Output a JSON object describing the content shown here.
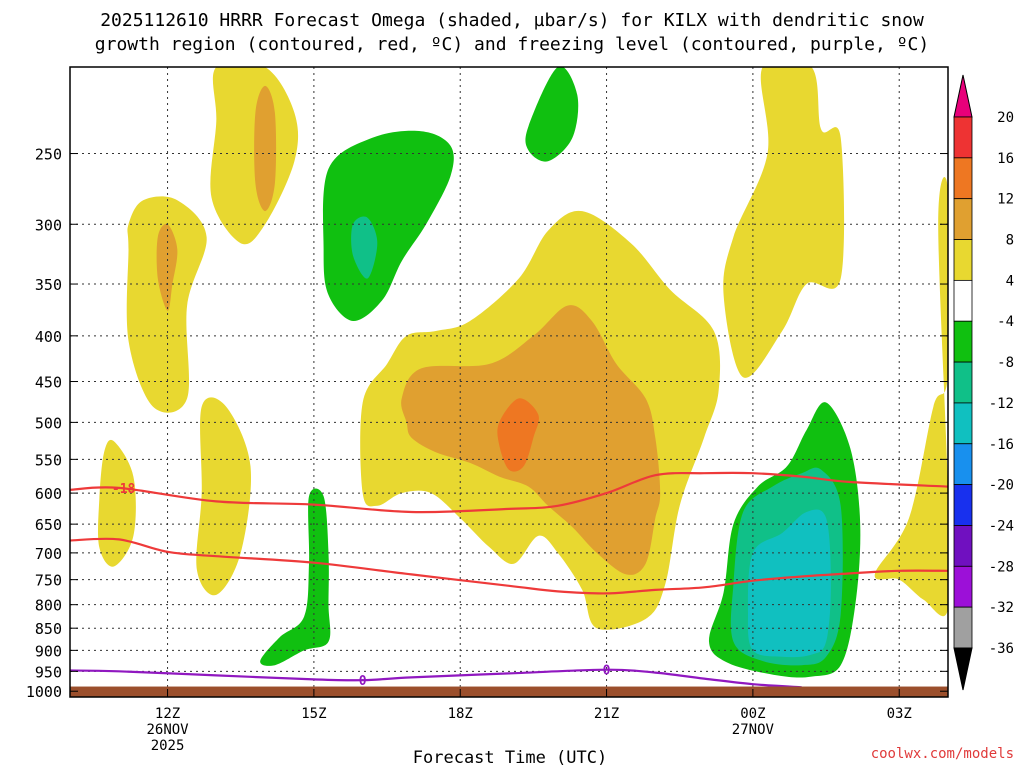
{
  "chart_data": {
    "type": "contour",
    "title_line1": "2025112610 HRRR Forecast Omega (shaded, µbar/s) for KILX with dendritic snow",
    "title_line2": "growth region (contoured, red, ºC) and freezing level (contoured, purple, ºC)",
    "xlabel": "Forecast Time (UTC)",
    "x_ticks": [
      {
        "hour": 12,
        "label": "12Z",
        "sub1": "26NOV",
        "sub2": "2025"
      },
      {
        "hour": 15,
        "label": "15Z",
        "sub1": "",
        "sub2": ""
      },
      {
        "hour": 18,
        "label": "18Z",
        "sub1": "",
        "sub2": ""
      },
      {
        "hour": 21,
        "label": "21Z",
        "sub1": "",
        "sub2": ""
      },
      {
        "hour": 24,
        "label": "00Z",
        "sub1": "27NOV",
        "sub2": ""
      },
      {
        "hour": 27,
        "label": "03Z",
        "sub1": "",
        "sub2": ""
      }
    ],
    "x_range_hours": [
      10,
      28
    ],
    "y_ticks": [
      250,
      300,
      350,
      400,
      450,
      500,
      550,
      600,
      650,
      700,
      750,
      800,
      850,
      900,
      950,
      1000
    ],
    "y_range_hpa": [
      200,
      1015
    ],
    "surface_hpa": 988,
    "colorbar": {
      "labels": [
        "20",
        "16",
        "12",
        "8",
        "4",
        "-4",
        "-8",
        "-12",
        "-16",
        "-20",
        "-24",
        "-28",
        "-32",
        "-36"
      ],
      "colors": [
        "#e8007a",
        "#ee3333",
        "#ee7722",
        "#e0a030",
        "#e8d830",
        "#ffffff",
        "#10c010",
        "#10c088",
        "#10c0c0",
        "#1890ee",
        "#1830ee",
        "#7010c0",
        "#9c10d8",
        "#a0a0a0",
        "#000000"
      ]
    },
    "contours": [
      {
        "name": "dgz-top",
        "value": -18,
        "label": "-18",
        "color": "#ee3a3a",
        "points": [
          [
            10,
            595
          ],
          [
            11,
            592
          ],
          [
            13,
            613
          ],
          [
            15,
            618
          ],
          [
            17,
            630
          ],
          [
            19,
            625
          ],
          [
            20,
            620
          ],
          [
            21,
            600
          ],
          [
            22,
            573
          ],
          [
            23,
            570
          ],
          [
            24,
            570
          ],
          [
            25,
            575
          ],
          [
            26,
            583
          ],
          [
            28,
            590
          ]
        ]
      },
      {
        "name": "dgz-bottom",
        "value": -12,
        "label": "",
        "color": "#ee3a3a",
        "points": [
          [
            10,
            678
          ],
          [
            11,
            676
          ],
          [
            12,
            698
          ],
          [
            13,
            706
          ],
          [
            15,
            718
          ],
          [
            17,
            740
          ],
          [
            19,
            762
          ],
          [
            20,
            773
          ],
          [
            21,
            777
          ],
          [
            22,
            770
          ],
          [
            23,
            765
          ],
          [
            24,
            752
          ],
          [
            25,
            744
          ],
          [
            26,
            738
          ],
          [
            27,
            733
          ],
          [
            28,
            733
          ]
        ]
      },
      {
        "name": "freezing-level",
        "value": 0,
        "label": "0",
        "color": "#9018c0",
        "points": [
          [
            10,
            948
          ],
          [
            11,
            950
          ],
          [
            13,
            960
          ],
          [
            15,
            970
          ],
          [
            16,
            972
          ],
          [
            17,
            965
          ],
          [
            19,
            955
          ],
          [
            21,
            946
          ],
          [
            22,
            953
          ],
          [
            23,
            968
          ],
          [
            24,
            982
          ],
          [
            25,
            990
          ]
        ]
      }
    ],
    "contour_labels": [
      {
        "name": "dgz-top-label",
        "text": "-18",
        "hour": 11.1,
        "hpa": 592,
        "color": "#ee3a3a"
      },
      {
        "name": "freezing-level-label-1",
        "text": "0",
        "hour": 16.0,
        "hpa": 972,
        "color": "#9018c0"
      },
      {
        "name": "freezing-level-label-2",
        "text": "0",
        "hour": 21.0,
        "hpa": 946,
        "color": "#9018c0"
      }
    ],
    "regions": [
      {
        "name": "omega-positive-a",
        "value": 4,
        "color": "#e8d830",
        "points": [
          [
            13,
            200
          ],
          [
            14,
            200
          ],
          [
            14.6,
            225
          ],
          [
            14.6,
            255
          ],
          [
            14,
            300
          ],
          [
            13.5,
            315
          ],
          [
            12.9,
            280
          ],
          [
            13,
            230
          ]
        ]
      },
      {
        "name": "omega-positive-b",
        "value": 4,
        "color": "#e8d830",
        "points": [
          [
            11.2,
            300
          ],
          [
            11.5,
            282
          ],
          [
            12.2,
            282
          ],
          [
            12.8,
            310
          ],
          [
            12.4,
            370
          ],
          [
            12.4,
            470
          ],
          [
            11.7,
            480
          ],
          [
            11.2,
            405
          ],
          [
            11.2,
            320
          ]
        ]
      },
      {
        "name": "omega-positive-c",
        "value": 4,
        "color": "#e8d830",
        "points": [
          [
            10.7,
            540
          ],
          [
            10.9,
            525
          ],
          [
            11.3,
            575
          ],
          [
            11.3,
            670
          ],
          [
            10.9,
            725
          ],
          [
            10.6,
            690
          ],
          [
            10.6,
            610
          ]
        ]
      },
      {
        "name": "omega-positive-d",
        "value": 4,
        "color": "#e8d830",
        "points": [
          [
            12.7,
            480
          ],
          [
            13.2,
            480
          ],
          [
            13.7,
            560
          ],
          [
            13.5,
            700
          ],
          [
            13,
            780
          ],
          [
            12.6,
            730
          ],
          [
            12.7,
            600
          ]
        ]
      },
      {
        "name": "omega-positive-e",
        "value": 4,
        "color": "#e8d830",
        "points": [
          [
            16,
            475
          ],
          [
            16.5,
            430
          ],
          [
            16.9,
            400
          ],
          [
            17.5,
            395
          ],
          [
            18.2,
            385
          ],
          [
            19.2,
            345
          ],
          [
            19.8,
            305
          ],
          [
            20.5,
            290
          ],
          [
            21.5,
            315
          ],
          [
            22.3,
            355
          ],
          [
            23.2,
            395
          ],
          [
            23.3,
            460
          ],
          [
            23,
            520
          ],
          [
            22.5,
            620
          ],
          [
            22.2,
            760
          ],
          [
            21.8,
            830
          ],
          [
            20.8,
            850
          ],
          [
            20.5,
            770
          ],
          [
            20,
            700
          ],
          [
            19.6,
            670
          ],
          [
            19.1,
            720
          ],
          [
            18.6,
            690
          ],
          [
            18,
            640
          ],
          [
            17.4,
            600
          ],
          [
            16.8,
            600
          ],
          [
            16.3,
            620
          ],
          [
            16,
            600
          ]
        ]
      },
      {
        "name": "omega-positive-f",
        "value": 4,
        "color": "#e8d830",
        "points": [
          [
            24.2,
            200
          ],
          [
            25.2,
            200
          ],
          [
            25.4,
            235
          ],
          [
            25.8,
            240
          ],
          [
            25.8,
            345
          ],
          [
            25.1,
            350
          ],
          [
            24.6,
            395
          ],
          [
            23.8,
            445
          ],
          [
            23.4,
            360
          ],
          [
            23.6,
            310
          ],
          [
            24.3,
            250
          ]
        ]
      },
      {
        "name": "omega-positive-g",
        "value": 4,
        "color": "#e8d830",
        "points": [
          [
            27.8,
            300
          ],
          [
            28,
            275
          ],
          [
            28,
            440
          ],
          [
            27.7,
            480
          ],
          [
            27.2,
            640
          ],
          [
            26.5,
            740
          ],
          [
            27,
            750
          ],
          [
            27.5,
            790
          ],
          [
            28,
            810
          ],
          [
            28,
            600
          ]
        ]
      },
      {
        "name": "omega-8-a",
        "value": 8,
        "color": "#e0a030",
        "points": [
          [
            13.8,
            225
          ],
          [
            14.0,
            210
          ],
          [
            14.2,
            225
          ],
          [
            14.2,
            270
          ],
          [
            14,
            290
          ],
          [
            13.8,
            270
          ]
        ]
      },
      {
        "name": "omega-8-b",
        "value": 8,
        "color": "#e0a030",
        "points": [
          [
            11.8,
            310
          ],
          [
            12.0,
            300
          ],
          [
            12.2,
            320
          ],
          [
            12.1,
            350
          ],
          [
            12.0,
            375
          ],
          [
            11.8,
            345
          ]
        ]
      },
      {
        "name": "omega-8-c",
        "value": 8,
        "color": "#e0a030",
        "points": [
          [
            16.8,
            470
          ],
          [
            17.2,
            435
          ],
          [
            18.6,
            430
          ],
          [
            19.5,
            400
          ],
          [
            20.2,
            370
          ],
          [
            20.7,
            385
          ],
          [
            21.2,
            430
          ],
          [
            21.8,
            470
          ],
          [
            22,
            520
          ],
          [
            22.1,
            600
          ],
          [
            22,
            640
          ],
          [
            21.8,
            720
          ],
          [
            21.4,
            740
          ],
          [
            20.8,
            700
          ],
          [
            20.3,
            655
          ],
          [
            19.8,
            620
          ],
          [
            19.4,
            590
          ],
          [
            18.8,
            575
          ],
          [
            18.2,
            555
          ],
          [
            17.5,
            540
          ],
          [
            17,
            520
          ],
          [
            16.9,
            500
          ]
        ]
      },
      {
        "name": "omega-12",
        "value": 12,
        "color": "#ee7722",
        "points": [
          [
            18.8,
            500
          ],
          [
            19.2,
            470
          ],
          [
            19.6,
            490
          ],
          [
            19.5,
            520
          ],
          [
            19.3,
            560
          ],
          [
            19.0,
            565
          ],
          [
            18.8,
            530
          ]
        ]
      },
      {
        "name": "omega-neg-a",
        "value": -8,
        "color": "#10c010",
        "points": [
          [
            15.3,
            260
          ],
          [
            16.2,
            240
          ],
          [
            17.2,
            236
          ],
          [
            17.8,
            245
          ],
          [
            17.8,
            265
          ],
          [
            17.3,
            300
          ],
          [
            16.8,
            330
          ],
          [
            16.4,
            365
          ],
          [
            15.8,
            385
          ],
          [
            15.3,
            360
          ],
          [
            15.2,
            320
          ]
        ]
      },
      {
        "name": "omega-neg-b",
        "value": -8,
        "color": "#10c010",
        "points": [
          [
            19.4,
            233
          ],
          [
            20.0,
            200
          ],
          [
            20.4,
            215
          ],
          [
            20.3,
            240
          ],
          [
            19.8,
            255
          ],
          [
            19.4,
            248
          ]
        ]
      },
      {
        "name": "omega-neg-c",
        "value": -8,
        "color": "#10c010",
        "points": [
          [
            14.9,
            605
          ],
          [
            15.2,
            605
          ],
          [
            15.3,
            700
          ],
          [
            15.3,
            800
          ],
          [
            15.3,
            880
          ],
          [
            14.8,
            900
          ],
          [
            14.2,
            935
          ],
          [
            13.9,
            925
          ],
          [
            14.3,
            870
          ],
          [
            14.8,
            825
          ],
          [
            14.9,
            720
          ]
        ]
      },
      {
        "name": "omega-neg-d",
        "value": -8,
        "color": "#10c010",
        "points": [
          [
            23.6,
            650
          ],
          [
            24.1,
            590
          ],
          [
            24.7,
            560
          ],
          [
            25.1,
            510
          ],
          [
            25.5,
            475
          ],
          [
            26.0,
            535
          ],
          [
            26.2,
            650
          ],
          [
            26.1,
            800
          ],
          [
            25.8,
            935
          ],
          [
            25.2,
            963
          ],
          [
            24.5,
            960
          ],
          [
            23.5,
            930
          ],
          [
            23.1,
            880
          ],
          [
            23.4,
            775
          ]
        ]
      },
      {
        "name": "omega-neg-12-a",
        "value": -12,
        "color": "#10c088",
        "points": [
          [
            15.8,
            300
          ],
          [
            16.1,
            295
          ],
          [
            16.3,
            315
          ],
          [
            16.1,
            345
          ],
          [
            15.8,
            325
          ]
        ]
      },
      {
        "name": "omega-neg-12-b",
        "value": -12,
        "color": "#10c088",
        "points": [
          [
            23.8,
            630
          ],
          [
            24.4,
            590
          ],
          [
            25.0,
            570
          ],
          [
            25.4,
            565
          ],
          [
            25.8,
            620
          ],
          [
            25.8,
            820
          ],
          [
            25.5,
            915
          ],
          [
            25.0,
            935
          ],
          [
            24.2,
            925
          ],
          [
            23.6,
            880
          ],
          [
            23.6,
            760
          ]
        ]
      },
      {
        "name": "omega-neg-16",
        "value": -16,
        "color": "#10c0c0",
        "points": [
          [
            24.0,
            700
          ],
          [
            24.6,
            665
          ],
          [
            25.1,
            630
          ],
          [
            25.5,
            640
          ],
          [
            25.6,
            760
          ],
          [
            25.5,
            880
          ],
          [
            25.2,
            910
          ],
          [
            24.6,
            915
          ],
          [
            24.0,
            900
          ],
          [
            23.9,
            820
          ]
        ]
      }
    ]
  },
  "credit": "coolwx.com/models"
}
